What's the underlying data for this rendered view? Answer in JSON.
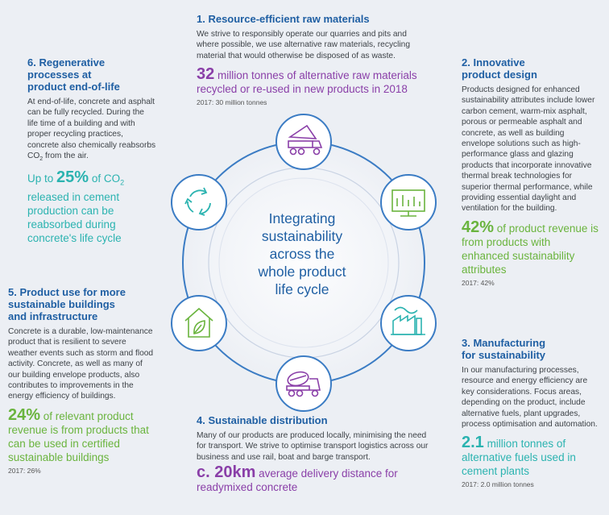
{
  "center": {
    "lines": [
      "Integrating",
      "sustainability",
      "across the",
      "whole product",
      "life cycle"
    ]
  },
  "stages": [
    {
      "heading": "1. Resource-efficient raw materials",
      "body": "We strive to responsibly operate our quarries and pits and where possible, we use alternative raw materials, recycling material that would otherwise be disposed of as waste.",
      "stat_value": "32",
      "stat_text": " million tonnes of alternative raw materials recycled or re-used in new products in 2018",
      "note": "2017: 30 million tonnes",
      "icon": "dump-truck-icon"
    },
    {
      "heading_lines": [
        "2. Innovative",
        "product design"
      ],
      "body": "Products designed for enhanced sustainability attributes include lower carbon cement, warm-mix asphalt, porous or permeable asphalt and concrete, as well as building envelope solutions such as high-performance glass and glazing products that incorporate innovative thermal break technologies for superior thermal performance, while providing essential daylight and ventilation for the building.",
      "stat_value": "42%",
      "stat_text": " of product revenue is from products with enhanced sustainability attributes",
      "note": "2017: 42%",
      "icon": "monitor-chart-icon"
    },
    {
      "heading_lines": [
        "3. Manufacturing",
        "for sustainability"
      ],
      "body": "In our manufacturing processes, resource and energy efficiency are key considerations. Focus areas, depending on the product, include alternative fuels, plant upgrades, process optimisation and automation.",
      "stat_value": "2.1",
      "stat_text": " million tonnes of alternative fuels used in cement plants",
      "note": "2017: 2.0 million tonnes",
      "icon": "factory-icon"
    },
    {
      "heading": "4. Sustainable distribution",
      "body": "Many of our products are produced locally, minimising the need for transport. We strive to optimise transport logistics across our business and use rail, boat and barge transport.",
      "stat_value": "c. 20km",
      "stat_text": " average delivery distance for readymixed concrete",
      "icon": "concrete-mixer-truck-icon"
    },
    {
      "heading_lines": [
        "5. Product use for more",
        "sustainable buildings",
        "and infrastructure"
      ],
      "body": "Concrete is a durable, low-maintenance product that is resilient to severe weather events such as storm and flood activity. Concrete, as well as many of our building envelope products, also contributes to improvements in the energy efficiency of buildings.",
      "stat_value": "24%",
      "stat_text": " of relevant product revenue is from products that can be used in certified sustainable buildings",
      "note": "2017: 26%",
      "icon": "house-leaf-icon"
    },
    {
      "heading_lines": [
        "6. Regenerative",
        "processes at",
        "product end-of-life"
      ],
      "body_pre": "At end-of-life, concrete and asphalt can be fully recycled. During the life time of a building and with proper recycling practices, concrete also chemically reabsorbs CO",
      "body_sub": "2",
      "body_post": " from the air.",
      "stat_prefix": "Up to ",
      "stat_value": "25%",
      "stat_text_pre": " of CO",
      "stat_sub": "2",
      "stat_text_post": " released in cement production can be reabsorbed during concrete's life cycle",
      "icon": "recycle-arrows-icon"
    }
  ],
  "colors": {
    "heading_blue": "#1f5fa3",
    "purple": "#8a3fa8",
    "green": "#6ab43e",
    "teal": "#2bb3b0",
    "ring": "#3b7cc4"
  }
}
